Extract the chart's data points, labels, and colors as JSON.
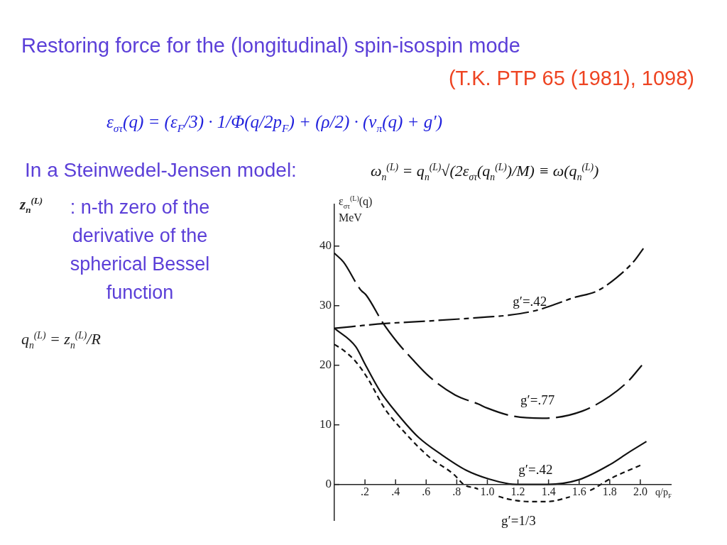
{
  "chart_data": {
    "type": "line",
    "title": "Restoring force for the (longitudinal) spin-isospin mode",
    "subtitle": "(T.K. PTP 65 (1981), 1098)",
    "xlabel": "q/p$_{F}$",
    "ylabel": "ε$_{στ}$$^{(L)}$(q) MeV",
    "annotations": [
      "ε$_{στ}$(q) = (ε$_{F}$/3) · 1/Φ(q/2p$_{F}$) + (ρ/2) · (v$_{π}$(q) + g′)",
      "In a Steinwedel-Jensen model:",
      "ω$_{n}$$^{(L)}$ = q$_{n}$$^{(L)}$√(2ε$_{στ}$(q$_{n}$$^{(L)}$)/M) ≡ ω(q$_{n}$$^{(L)}$)",
      "z$_{n}$$^{(L)}$",
      ": n-th zero of the derivative of the spherical Bessel function",
      "q$_{n}$$^{(L)}$ = z$_{n}$$^{(L)}$/R"
    ],
    "series": [
      {
        "name": "g′=.42",
        "color": "#111111",
        "line_style": "dashdot",
        "x": [
          0,
          0.33,
          0.6,
          1.0,
          1.14,
          1.32,
          1.44,
          1.56,
          1.72,
          1.84,
          1.96,
          2.02
        ],
        "values": [
          26.2,
          27.0,
          27.4,
          28.1,
          28.4,
          29.2,
          30.2,
          31.3,
          32.5,
          34.6,
          37.5,
          39.6
        ]
      },
      {
        "name": "g′=.77",
        "color": "#111111",
        "line_style": "dashed",
        "x": [
          0,
          0.06,
          0.17,
          0.21,
          0.32,
          0.41,
          0.51,
          0.62,
          0.79,
          0.94,
          1.0,
          1.16,
          1.37,
          1.62,
          1.8,
          1.92,
          2.01
        ],
        "values": [
          38.8,
          37.3,
          32.7,
          31.7,
          27.0,
          23.9,
          21.0,
          18.1,
          15.0,
          13.5,
          12.8,
          11.5,
          11.1,
          12.3,
          14.8,
          17.3,
          20.0
        ]
      },
      {
        "name": "g′=.42",
        "color": "#111111",
        "line_style": "solid",
        "x": [
          0,
          0.14,
          0.2,
          0.3,
          0.41,
          0.55,
          0.7,
          0.86,
          1.01,
          1.14,
          1.19,
          1.39,
          1.6,
          1.8,
          1.92,
          2.04
        ],
        "values": [
          26.2,
          23.1,
          20.2,
          15.6,
          11.9,
          7.9,
          5.0,
          2.4,
          0.9,
          0.1,
          0,
          0,
          0.8,
          3.3,
          5.3,
          7.2
        ]
      },
      {
        "name": "g′=1/3",
        "color": "#111111",
        "line_style": "dashed",
        "x": [
          0,
          0.06,
          0.14,
          0.22,
          0.33,
          0.46,
          0.62,
          0.78,
          0.85,
          0.92,
          1.11,
          1.19,
          1.28,
          1.36,
          1.43,
          1.51,
          1.68,
          1.8,
          1.9,
          2.01
        ],
        "values": [
          23.5,
          22.5,
          20.6,
          17.7,
          12.7,
          8.7,
          4.6,
          1.7,
          -0.1,
          -0.6,
          -2.3,
          -2.7,
          -2.9,
          -2.9,
          -2.8,
          -2.3,
          -0.9,
          0.9,
          2.1,
          3.3
        ]
      }
    ],
    "xlim": [
      0,
      2.2
    ],
    "ylim": [
      -6,
      47
    ],
    "xticks": [
      {
        "value": 0.2,
        "label": ".2"
      },
      {
        "value": 0.4,
        "label": ".4"
      },
      {
        "value": 0.6,
        "label": ".6"
      },
      {
        "value": 0.8,
        "label": ".8"
      },
      {
        "value": 1.0,
        "label": "1.0"
      },
      1.2,
      1.4,
      1.6,
      1.8,
      {
        "value": 2.0,
        "label": "2.0"
      }
    ],
    "yticks": [
      0,
      10,
      20,
      30,
      40
    ],
    "grid": false,
    "legend": false,
    "marker": "none"
  }
}
